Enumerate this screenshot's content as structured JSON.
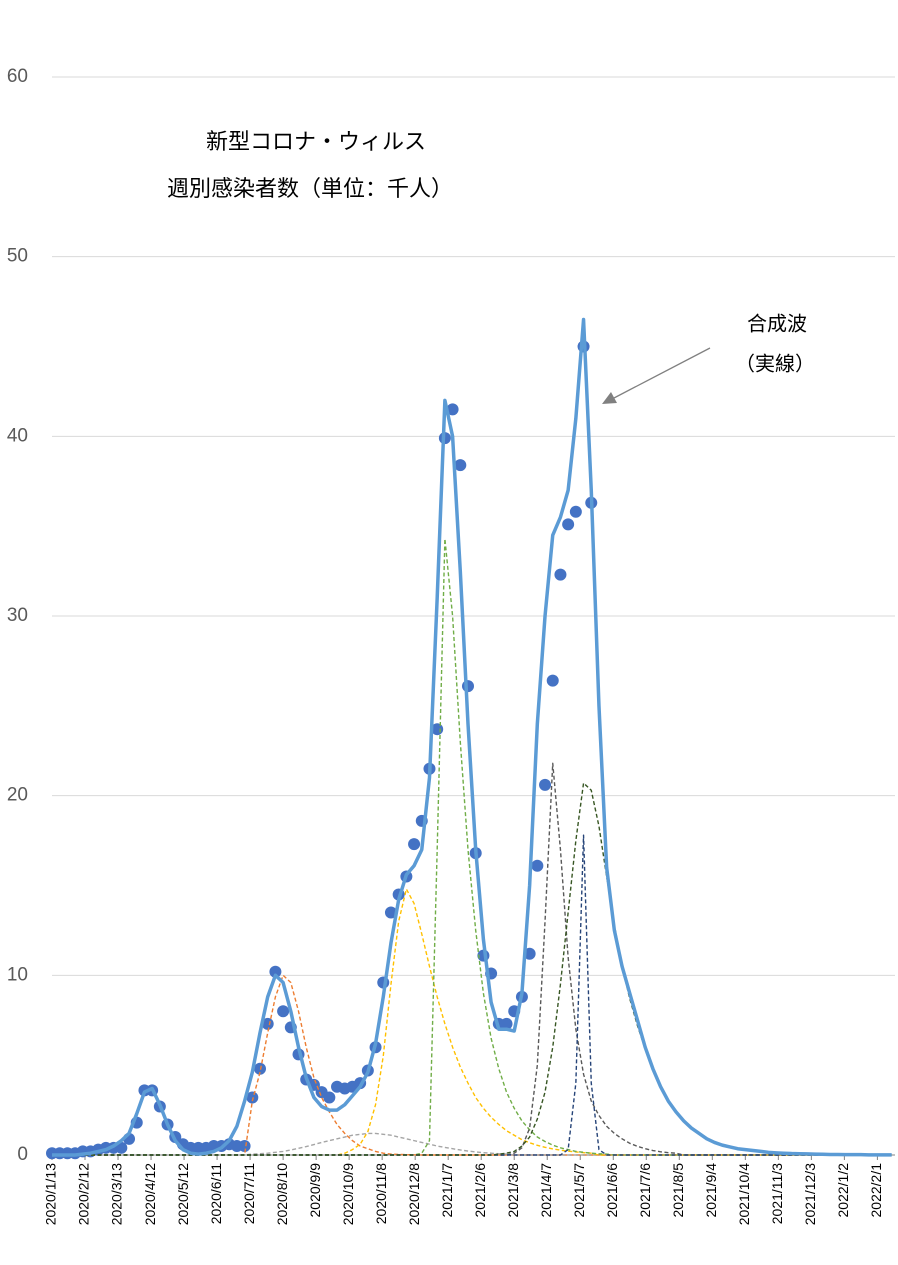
{
  "chart_data": {
    "type": "line",
    "title": "新型コロナ・ウィルス",
    "subtitle": "週別感染者数（単位：千人）",
    "annotation": [
      "合成波",
      "（実線）"
    ],
    "xlim": [
      0,
      766
    ],
    "ylim": [
      0,
      60
    ],
    "yticks": [
      0,
      10,
      20,
      30,
      40,
      50,
      60
    ],
    "grid": true,
    "xticks": [
      {
        "value": 0,
        "label": "2020/1/13"
      },
      {
        "value": 30,
        "label": "2020/2/12"
      },
      {
        "value": 60,
        "label": "2020/3/13"
      },
      {
        "value": 90,
        "label": "2020/4/12"
      },
      {
        "value": 120,
        "label": "2020/5/12"
      },
      {
        "value": 150,
        "label": "2020/6/11"
      },
      {
        "value": 180,
        "label": "2020/7/11"
      },
      {
        "value": 210,
        "label": "2020/8/10"
      },
      {
        "value": 240,
        "label": "2020/9/9"
      },
      {
        "value": 270,
        "label": "2020/10/9"
      },
      {
        "value": 300,
        "label": "2020/11/8"
      },
      {
        "value": 330,
        "label": "2020/12/8"
      },
      {
        "value": 360,
        "label": "2021/1/7"
      },
      {
        "value": 390,
        "label": "2021/2/6"
      },
      {
        "value": 420,
        "label": "2021/3/8"
      },
      {
        "value": 450,
        "label": "2021/4/7"
      },
      {
        "value": 480,
        "label": "2021/5/7"
      },
      {
        "value": 510,
        "label": "2021/6/6"
      },
      {
        "value": 540,
        "label": "2021/7/6"
      },
      {
        "value": 570,
        "label": "2021/8/5"
      },
      {
        "value": 600,
        "label": "2021/9/4"
      },
      {
        "value": 630,
        "label": "2021/10/4"
      },
      {
        "value": 660,
        "label": "2021/11/3"
      },
      {
        "value": 690,
        "label": "2021/12/3"
      },
      {
        "value": 720,
        "label": "2022/1/2"
      },
      {
        "value": 750,
        "label": "2022/2/1"
      }
    ],
    "x": [
      0,
      7,
      14,
      21,
      28,
      35,
      42,
      49,
      56,
      63,
      70,
      77,
      84,
      91,
      98,
      105,
      112,
      119,
      126,
      133,
      140,
      147,
      154,
      161,
      168,
      175,
      182,
      189,
      196,
      203,
      210,
      217,
      224,
      231,
      238,
      245,
      252,
      259,
      266,
      273,
      280,
      287,
      294,
      301,
      308,
      315,
      322,
      329,
      336,
      343,
      350,
      357,
      364,
      371,
      378,
      385,
      392,
      399,
      406,
      413,
      420,
      427,
      434,
      441,
      448,
      455,
      462,
      469,
      476,
      483,
      490,
      497,
      504,
      511,
      518,
      525,
      532,
      539,
      546,
      553,
      560,
      567,
      574,
      581,
      588,
      595,
      602,
      609,
      616,
      623,
      630,
      637,
      644,
      651,
      658,
      665,
      672,
      679,
      686,
      693,
      700,
      707,
      714,
      721,
      728,
      735,
      742,
      749,
      756,
      763
    ],
    "series": [
      {
        "type": "line",
        "dash": true,
        "color": "#ed7d31",
        "values": [
          0,
          0,
          0,
          0,
          0,
          0,
          0,
          0,
          0,
          0,
          0,
          0,
          0,
          0,
          0,
          0,
          0,
          0,
          0,
          0,
          0,
          0,
          0,
          0,
          0,
          0,
          3.0,
          4.6,
          6.8,
          8.8,
          10.0,
          9.6,
          8.0,
          6.0,
          4.3,
          3.2,
          2.4,
          1.7,
          1.2,
          0.8,
          0.5,
          0.35,
          0.2,
          0.1,
          0.05,
          0.03,
          0.02,
          0.01,
          0,
          0,
          0,
          0,
          0,
          0,
          0,
          0,
          0,
          0,
          0,
          0,
          0,
          0,
          0,
          0,
          0,
          0,
          0,
          0,
          0,
          0,
          0,
          0,
          0,
          0,
          0,
          0,
          0,
          0,
          0,
          0,
          0,
          0,
          0,
          0,
          0,
          0,
          0,
          0,
          0,
          0,
          0,
          0,
          0,
          0,
          0,
          0,
          0,
          0,
          0,
          0,
          0,
          0,
          0,
          0,
          0,
          0,
          0,
          0,
          0,
          0
        ]
      },
      {
        "type": "line",
        "dash": true,
        "color": "#a5a5a5",
        "values": [
          0,
          0,
          0,
          0,
          0,
          0,
          0,
          0,
          0,
          0,
          0,
          0,
          0,
          0,
          0,
          0,
          0,
          0,
          0,
          0,
          0,
          0,
          0,
          0,
          0,
          0,
          0.05,
          0.07,
          0.1,
          0.15,
          0.2,
          0.28,
          0.37,
          0.47,
          0.58,
          0.7,
          0.8,
          0.9,
          1.0,
          1.1,
          1.15,
          1.2,
          1.2,
          1.15,
          1.1,
          1.0,
          0.9,
          0.8,
          0.7,
          0.6,
          0.5,
          0.42,
          0.35,
          0.28,
          0.22,
          0.17,
          0.13,
          0.1,
          0.07,
          0.05,
          0,
          0,
          0,
          0,
          0,
          0,
          0,
          0,
          0,
          0,
          0,
          0,
          0,
          0,
          0,
          0,
          0,
          0,
          0,
          0,
          0,
          0,
          0,
          0,
          0,
          0,
          0,
          0,
          0,
          0,
          0,
          0,
          0,
          0,
          0,
          0,
          0,
          0,
          0,
          0,
          0,
          0,
          0,
          0,
          0,
          0,
          0,
          0,
          0,
          0
        ]
      },
      {
        "type": "line",
        "dash": true,
        "color": "#ffc000",
        "values": [
          0,
          0,
          0,
          0,
          0,
          0,
          0,
          0,
          0,
          0,
          0,
          0,
          0,
          0,
          0,
          0,
          0,
          0,
          0,
          0,
          0,
          0,
          0,
          0,
          0,
          0,
          0,
          0,
          0,
          0,
          0,
          0,
          0,
          0,
          0,
          0,
          0,
          0,
          0.1,
          0.3,
          0.6,
          1.3,
          2.8,
          5.5,
          9.5,
          13.0,
          14.8,
          14.0,
          12.3,
          10.5,
          8.8,
          7.3,
          6.0,
          4.9,
          4.0,
          3.2,
          2.6,
          2.1,
          1.7,
          1.35,
          1.1,
          0.85,
          0.68,
          0.54,
          0.43,
          0.34,
          0.27,
          0.21,
          0.17,
          0.13,
          0.1,
          0,
          0,
          0,
          0,
          0,
          0,
          0,
          0,
          0,
          0,
          0,
          0,
          0,
          0,
          0,
          0,
          0,
          0,
          0,
          0,
          0,
          0,
          0,
          0,
          0,
          0,
          0,
          0,
          0,
          0,
          0,
          0,
          0,
          0,
          0,
          0,
          0,
          0,
          0
        ]
      },
      {
        "type": "line",
        "dash": true,
        "color": "#70ad47",
        "values": [
          0,
          0,
          0,
          0,
          0,
          0,
          0,
          0,
          0,
          0,
          0,
          0,
          0,
          0,
          0,
          0,
          0,
          0,
          0,
          0,
          0,
          0,
          0,
          0,
          0,
          0,
          0,
          0,
          0,
          0,
          0,
          0,
          0,
          0,
          0,
          0,
          0,
          0,
          0,
          0,
          0,
          0,
          0,
          0,
          0,
          0,
          0,
          0,
          0.1,
          0.8,
          17,
          34.3,
          30,
          23,
          17,
          12.5,
          9,
          6.5,
          4.8,
          3.5,
          2.6,
          1.9,
          1.4,
          1.0,
          0.75,
          0.55,
          0.4,
          0.3,
          0.2,
          0.15,
          0.1,
          0.07,
          0.05,
          0,
          0,
          0,
          0,
          0,
          0,
          0,
          0,
          0,
          0,
          0,
          0,
          0,
          0,
          0,
          0,
          0,
          0,
          0,
          0,
          0,
          0,
          0,
          0,
          0,
          0,
          0,
          0,
          0,
          0,
          0,
          0,
          0,
          0,
          0,
          0,
          0
        ]
      },
      {
        "type": "line",
        "dash": true,
        "color": "#595959",
        "values": [
          0,
          0,
          0,
          0,
          0,
          0,
          0,
          0,
          0,
          0,
          0,
          0,
          0,
          0,
          0,
          0,
          0,
          0,
          0,
          0,
          0,
          0,
          0,
          0,
          0,
          0,
          0,
          0,
          0,
          0,
          0,
          0,
          0,
          0,
          0,
          0,
          0,
          0,
          0,
          0,
          0,
          0,
          0,
          0,
          0,
          0,
          0,
          0,
          0,
          0,
          0,
          0,
          0,
          0,
          0,
          0,
          0,
          0,
          0,
          0,
          0.1,
          0.4,
          1.5,
          5,
          13,
          21.8,
          17,
          11,
          7,
          4.5,
          3,
          2.2,
          1.6,
          1.2,
          0.9,
          0.65,
          0.48,
          0.35,
          0.25,
          0.18,
          0.13,
          0.1,
          0,
          0,
          0,
          0,
          0,
          0,
          0,
          0,
          0,
          0,
          0,
          0,
          0,
          0,
          0,
          0,
          0,
          0,
          0,
          0,
          0,
          0,
          0,
          0,
          0,
          0,
          0,
          0
        ]
      },
      {
        "type": "line",
        "dash": true,
        "color": "#264478",
        "values": [
          0,
          0,
          0,
          0,
          0,
          0,
          0,
          0,
          0,
          0,
          0,
          0,
          0,
          0,
          0,
          0,
          0,
          0,
          0,
          0,
          0,
          0,
          0,
          0,
          0,
          0,
          0,
          0,
          0,
          0,
          0,
          0,
          0,
          0,
          0,
          0,
          0,
          0,
          0,
          0,
          0,
          0,
          0,
          0,
          0,
          0,
          0,
          0,
          0,
          0,
          0,
          0,
          0,
          0,
          0,
          0,
          0,
          0,
          0,
          0,
          0,
          0,
          0,
          0,
          0,
          0,
          0,
          0.3,
          4,
          17.8,
          4,
          0.3,
          0,
          0,
          0,
          0,
          0,
          0,
          0,
          0,
          0,
          0,
          0,
          0,
          0,
          0,
          0,
          0,
          0,
          0,
          0,
          0,
          0,
          0,
          0,
          0,
          0,
          0,
          0,
          0,
          0,
          0,
          0,
          0,
          0,
          0,
          0,
          0,
          0,
          0
        ]
      },
      {
        "type": "line",
        "dash": true,
        "color": "#375623",
        "values": [
          0,
          0,
          0,
          0,
          0,
          0,
          0,
          0,
          0,
          0,
          0,
          0,
          0,
          0,
          0,
          0,
          0,
          0,
          0,
          0,
          0,
          0,
          0,
          0,
          0,
          0,
          0,
          0,
          0,
          0,
          0,
          0,
          0,
          0,
          0,
          0,
          0,
          0,
          0,
          0,
          0,
          0,
          0,
          0,
          0,
          0,
          0,
          0,
          0,
          0,
          0,
          0,
          0,
          0,
          0,
          0,
          0,
          0,
          0.05,
          0.1,
          0.2,
          0.5,
          1.0,
          2.0,
          3.5,
          6,
          9.5,
          13.5,
          17.5,
          20.7,
          20.3,
          18.3,
          15.5,
          12.8,
          10.5,
          8.7,
          7.2,
          5.9,
          4.8,
          3.8,
          3.0,
          2.4,
          1.9,
          1.5,
          1.2,
          0.9,
          0.7,
          0.55,
          0.45,
          0.35,
          0.3,
          0.25,
          0.2,
          0.15,
          0.12,
          0.1,
          0.08,
          0.07,
          0.06,
          0.05,
          0.04,
          0.03,
          0.03,
          0.02,
          0.02,
          0.02,
          0.01,
          0.01,
          0.01,
          0.01
        ]
      },
      {
        "type": "line",
        "dash": false,
        "color": "#5b9bd5",
        "values": [
          0,
          0,
          0,
          0,
          0.05,
          0.1,
          0.2,
          0.3,
          0.5,
          0.8,
          1.2,
          2.3,
          3.5,
          3.7,
          2.8,
          1.7,
          0.8,
          0.3,
          0.1,
          0.05,
          0.1,
          0.2,
          0.4,
          0.8,
          1.6,
          3.0,
          4.6,
          6.8,
          8.8,
          10.0,
          9.6,
          8.0,
          6.0,
          4.3,
          3.2,
          2.7,
          2.5,
          2.5,
          2.8,
          3.3,
          3.8,
          4.6,
          6.2,
          8.8,
          11.8,
          14.2,
          15.6,
          16.1,
          17.0,
          21.0,
          31.0,
          42.0,
          40.0,
          32.5,
          24.0,
          17.0,
          12.0,
          8.5,
          7.0,
          7.0,
          6.9,
          9.0,
          15.0,
          24.0,
          30.0,
          34.5,
          35.5,
          37.0,
          41.0,
          46.5,
          37.0,
          25.0,
          16.0,
          12.5,
          10.5,
          9.0,
          7.5,
          6.0,
          4.8,
          3.8,
          3.0,
          2.4,
          1.9,
          1.5,
          1.2,
          0.9,
          0.7,
          0.55,
          0.45,
          0.35,
          0.3,
          0.25,
          0.2,
          0.15,
          0.12,
          0.1,
          0.08,
          0.07,
          0.06,
          0.05,
          0.04,
          0.03,
          0.03,
          0.02,
          0.02,
          0.02,
          0.01,
          0.01,
          0.01,
          0.01
        ]
      },
      {
        "type": "scatter",
        "color": "#4472c4",
        "values": [
          0.1,
          0.1,
          0.1,
          0.1,
          0.2,
          0.2,
          0.3,
          0.4,
          0.4,
          0.4,
          0.9,
          1.8,
          3.6,
          3.6,
          2.7,
          1.7,
          1.0,
          0.6,
          0.4,
          0.4,
          0.4,
          0.5,
          0.5,
          0.6,
          0.5,
          0.5,
          3.2,
          4.8,
          7.3,
          10.2,
          8.0,
          7.1,
          5.6,
          4.2,
          3.9,
          3.5,
          3.2,
          3.8,
          3.7,
          3.8,
          4.0,
          4.7,
          6.0,
          9.6,
          13.5,
          14.5,
          15.5,
          17.3,
          18.6,
          21.5,
          23.7,
          39.9,
          41.5,
          38.4,
          26.1,
          16.8,
          11.1,
          10.1,
          7.3,
          7.3,
          8.0,
          8.8,
          11.2,
          16.1,
          20.6,
          26.4,
          32.3,
          35.1,
          35.8,
          45.0,
          36.3,
          null,
          null,
          null,
          null,
          null,
          null,
          null,
          null,
          null,
          null,
          null,
          null,
          null,
          null,
          null,
          null,
          null,
          null,
          null,
          null,
          null,
          null,
          null,
          null,
          null,
          null,
          null,
          null,
          null,
          null,
          null,
          null,
          null,
          null,
          null,
          null,
          null,
          null,
          null
        ]
      }
    ]
  }
}
